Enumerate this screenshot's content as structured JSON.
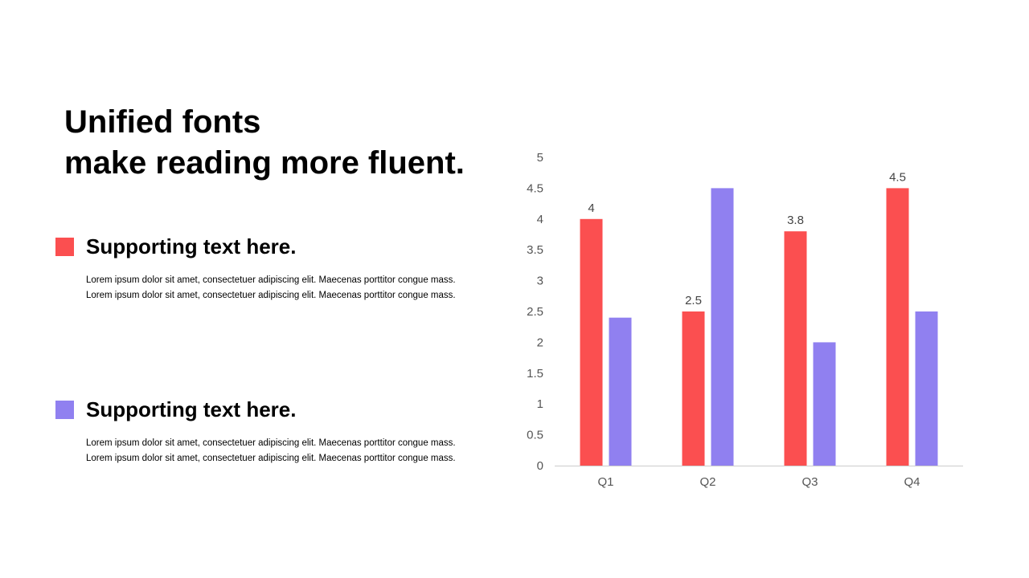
{
  "title": {
    "line1": "Unified fonts",
    "line2": "make reading more fluent."
  },
  "sections": [
    {
      "heading": "Supporting text here.",
      "color": "#fb4f50",
      "body": [
        "Lorem ipsum dolor sit amet, consectetuer adipiscing elit. Maecenas porttitor congue mass.",
        "Lorem ipsum dolor sit amet, consectetuer adipiscing elit. Maecenas porttitor congue mass."
      ]
    },
    {
      "heading": "Supporting text here.",
      "color": "#9080f0",
      "body": [
        "Lorem ipsum dolor sit amet, consectetuer adipiscing elit. Maecenas porttitor congue mass.",
        "Lorem ipsum dolor sit amet, consectetuer adipiscing elit. Maecenas porttitor congue mass."
      ]
    }
  ],
  "chart_data": {
    "type": "bar",
    "categories": [
      "Q1",
      "Q2",
      "Q3",
      "Q4"
    ],
    "series": [
      {
        "values": [
          4,
          2.5,
          3.8,
          4.5
        ],
        "color": "#fb4f50",
        "show_labels": true
      },
      {
        "values": [
          2.4,
          4.5,
          2,
          2.5
        ],
        "color": "#9080f0",
        "show_labels": false
      }
    ],
    "ylim": [
      0,
      5
    ],
    "yticks": [
      "0",
      "0.5",
      "1",
      "1.5",
      "2",
      "2.5",
      "3",
      "3.5",
      "4",
      "4.5",
      "5"
    ],
    "grid": false,
    "legend": "none"
  }
}
